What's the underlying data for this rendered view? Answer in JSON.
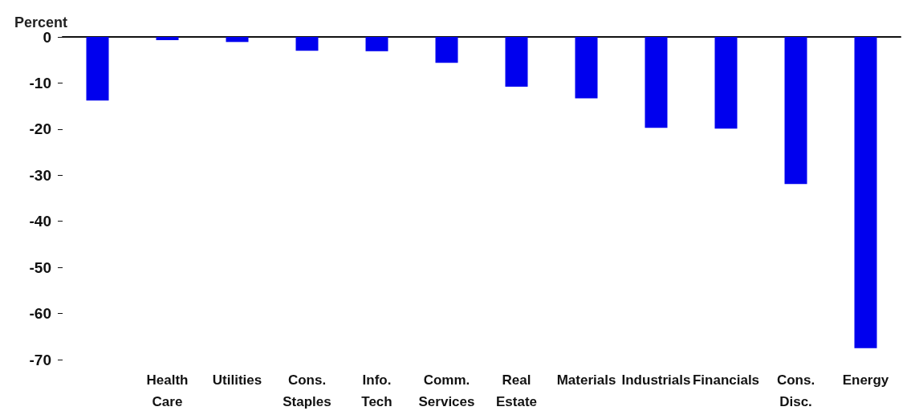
{
  "chart_data": {
    "type": "bar",
    "ylabel": "Percent",
    "categories": [
      null,
      "Health\nCare",
      "Utilities",
      "Cons.\nStaples",
      "Info.\nTech",
      "Comm.\nServices",
      "Real\nEstate",
      "Materials",
      "Industrials",
      "Financials",
      "Cons.\nDisc.",
      "Energy"
    ],
    "values": [
      -13.8,
      -0.7,
      -1.1,
      -3.0,
      -3.1,
      -5.6,
      -10.8,
      -13.3,
      -19.7,
      -19.9,
      -31.9,
      -67.5
    ],
    "color": "#0000ee",
    "ylim": [
      -70,
      0
    ],
    "yticks": [
      -70,
      -60,
      -50,
      -40,
      -30,
      -20,
      -10,
      0
    ],
    "grid": false
  }
}
